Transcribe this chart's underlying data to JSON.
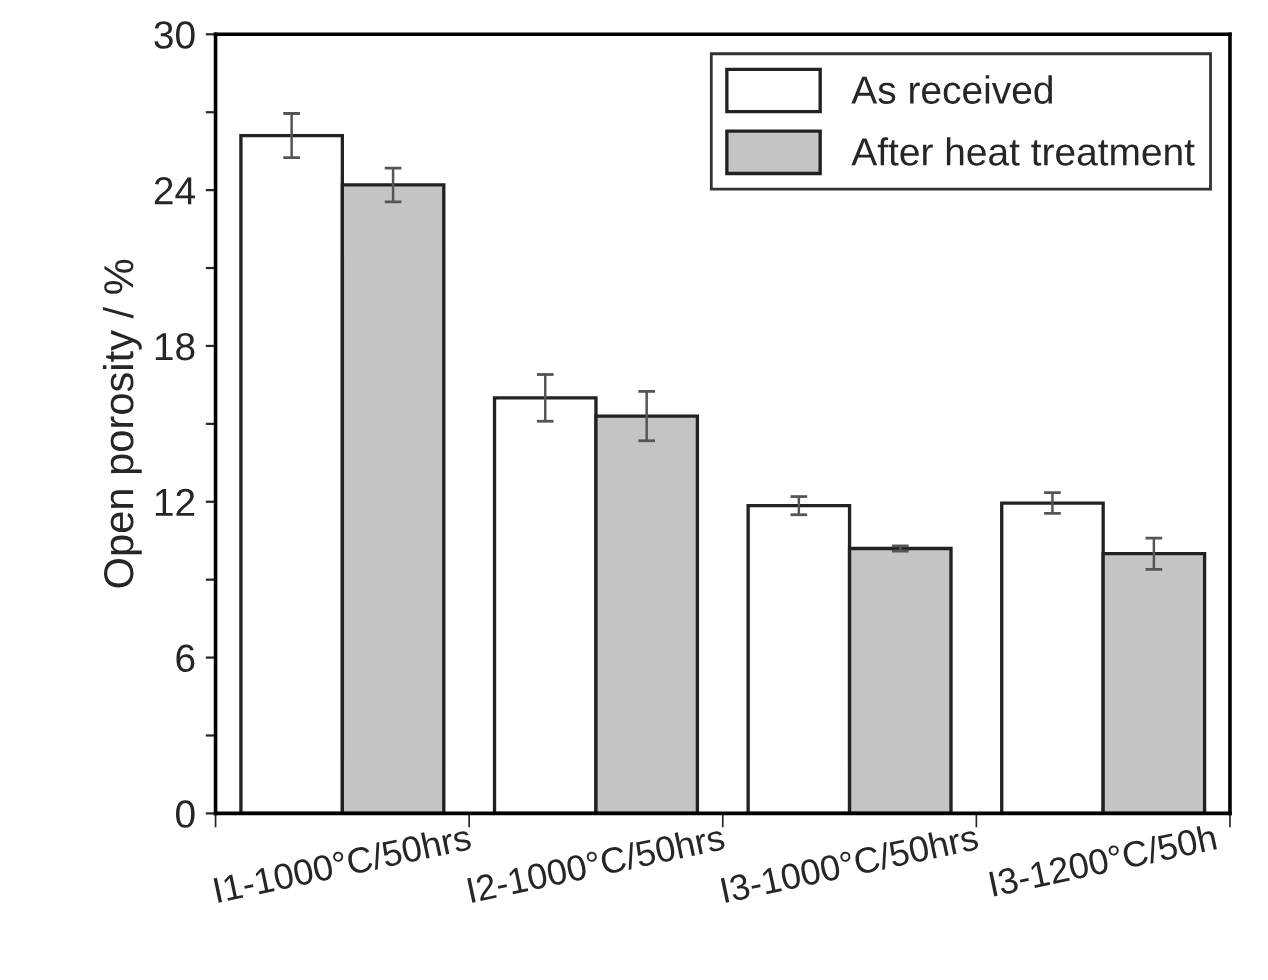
{
  "chart_data": {
    "type": "bar",
    "ylabel": "Open porosity / %",
    "categories": [
      "I1-1000°C/50hrs",
      "I2-1000°C/50hrs",
      "I3-1000°C/50hrs",
      "I3-1200°C/50h"
    ],
    "series": [
      {
        "name": "As received",
        "color": "#ffffff",
        "values": [
          26.1,
          16.0,
          11.85,
          11.95
        ],
        "errors": [
          0.85,
          0.9,
          0.35,
          0.4
        ]
      },
      {
        "name": "After heat treatment",
        "color": "#c4c4c4",
        "values": [
          24.2,
          15.3,
          10.2,
          10.0
        ],
        "errors": [
          0.65,
          0.95,
          0.1,
          0.6
        ]
      }
    ],
    "ylim": [
      0,
      30
    ],
    "yticks": [
      0,
      {
        "value": 3,
        "label": null
      },
      6,
      {
        "value": 9,
        "label": null
      },
      12,
      {
        "value": 15,
        "label": null
      },
      18,
      {
        "value": 21,
        "label": null
      },
      24,
      {
        "value": 27,
        "label": null
      },
      30
    ],
    "grid": false,
    "legend": "top right"
  }
}
